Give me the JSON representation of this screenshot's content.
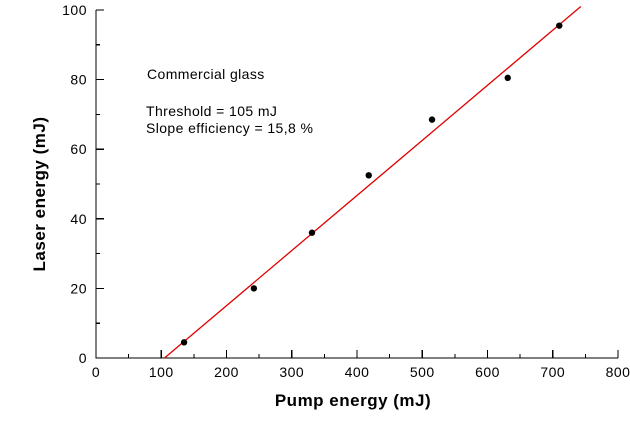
{
  "chart_data": {
    "type": "scatter",
    "xlabel": "Pump energy (mJ)",
    "ylabel": "Laser energy (mJ)",
    "xlim": [
      0,
      800
    ],
    "ylim": [
      0,
      100
    ],
    "x_major_ticks": [
      0,
      100,
      200,
      300,
      400,
      500,
      600,
      700,
      800
    ],
    "x_minor_step": 50,
    "y_major_ticks": [
      0,
      20,
      40,
      60,
      80,
      100
    ],
    "y_minor_step": 10,
    "grid": false,
    "legend": null,
    "axis_color": "#000000",
    "series": [
      {
        "name": "measured-laser-energy",
        "type": "scatter",
        "marker": "filled-circle",
        "color": "#000000",
        "points": [
          {
            "x": 135,
            "y": 4.5
          },
          {
            "x": 242,
            "y": 20
          },
          {
            "x": 331,
            "y": 36
          },
          {
            "x": 418,
            "y": 52.5
          },
          {
            "x": 515,
            "y": 68.5
          },
          {
            "x": 631,
            "y": 80.5
          },
          {
            "x": 710,
            "y": 95.5
          }
        ]
      },
      {
        "name": "linear-fit",
        "type": "line",
        "color": "#e00000",
        "points": [
          {
            "x": 105,
            "y": 0
          },
          {
            "x": 743,
            "y": 101
          }
        ]
      }
    ],
    "annotations": [
      {
        "text": "Commercial glass"
      },
      {
        "text": "Threshold = 105 mJ"
      },
      {
        "text": "Slope efficiency = 15,8 %"
      }
    ]
  }
}
